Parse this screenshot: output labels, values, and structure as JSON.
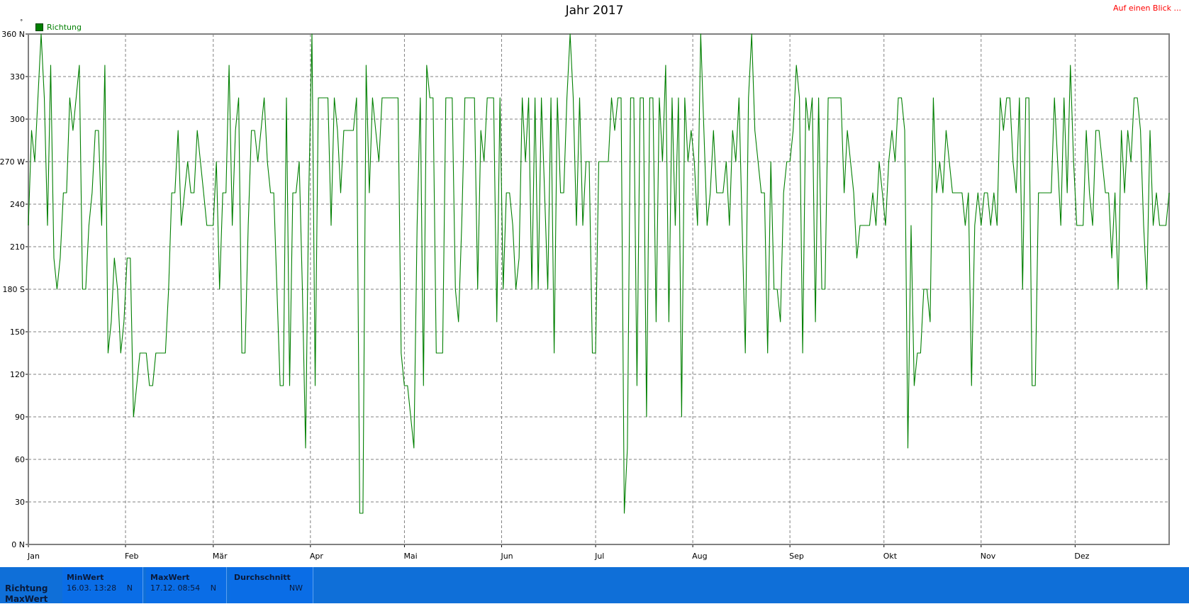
{
  "title": "Jahr 2017",
  "top_link": "Auf einen Blick ...",
  "corner_marker": "˚",
  "legend": {
    "label": "Richtung",
    "color": "#007f00"
  },
  "chart_data": {
    "type": "line",
    "title": "Jahr 2017",
    "x_unit": "day of year 2017",
    "x_range": [
      1,
      365
    ],
    "ylim": [
      0,
      360
    ],
    "y_ticks": [
      0,
      30,
      60,
      90,
      120,
      150,
      180,
      210,
      240,
      270,
      300,
      330,
      360
    ],
    "y_tick_labels": [
      "0 N",
      "30",
      "60",
      "90",
      "120",
      "150",
      "180 S",
      "210",
      "240",
      "270 W",
      "300",
      "330",
      "360 N"
    ],
    "x_month_labels": [
      "Jan",
      "Feb",
      "Mär",
      "Apr",
      "Mai",
      "Jun",
      "Jul",
      "Aug",
      "Sep",
      "Okt",
      "Nov",
      "Dez"
    ],
    "x_month_start_days": [
      1,
      32,
      60,
      91,
      121,
      152,
      182,
      213,
      244,
      274,
      305,
      335
    ],
    "grid": true,
    "legend_position": "top-left",
    "series": [
      {
        "name": "Richtung",
        "color": "#007f00",
        "values": [
          225,
          292,
          270,
          315,
          360,
          315,
          225,
          338,
          202,
          180,
          202,
          248,
          248,
          315,
          292,
          315,
          338,
          180,
          180,
          225,
          248,
          292,
          292,
          225,
          338,
          135,
          157,
          202,
          180,
          135,
          157,
          202,
          202,
          90,
          112,
          135,
          135,
          135,
          112,
          112,
          135,
          135,
          135,
          135,
          180,
          248,
          248,
          292,
          225,
          248,
          270,
          248,
          248,
          292,
          270,
          248,
          225,
          225,
          225,
          270,
          180,
          248,
          248,
          338,
          225,
          292,
          315,
          135,
          135,
          225,
          292,
          292,
          270,
          292,
          315,
          270,
          248,
          248,
          180,
          112,
          112,
          315,
          112,
          248,
          248,
          270,
          180,
          68,
          248,
          360,
          112,
          315,
          315,
          315,
          315,
          225,
          315,
          292,
          248,
          292,
          292,
          292,
          292,
          315,
          22,
          22,
          338,
          248,
          315,
          292,
          270,
          315,
          315,
          315,
          315,
          315,
          315,
          135,
          112,
          112,
          90,
          68,
          225,
          315,
          112,
          338,
          315,
          315,
          135,
          135,
          135,
          315,
          315,
          315,
          180,
          157,
          225,
          315,
          315,
          315,
          315,
          180,
          292,
          270,
          315,
          315,
          315,
          157,
          315,
          180,
          248,
          248,
          225,
          180,
          202,
          315,
          270,
          315,
          180,
          315,
          180,
          315,
          248,
          180,
          315,
          135,
          315,
          248,
          248,
          315,
          360,
          315,
          225,
          315,
          225,
          270,
          270,
          135,
          135,
          270,
          270,
          270,
          270,
          315,
          292,
          315,
          315,
          22,
          68,
          315,
          315,
          112,
          315,
          315,
          90,
          315,
          315,
          157,
          315,
          270,
          338,
          157,
          315,
          225,
          315,
          90,
          315,
          270,
          292,
          270,
          225,
          360,
          292,
          225,
          248,
          292,
          248,
          248,
          248,
          270,
          225,
          292,
          270,
          315,
          225,
          135,
          315,
          360,
          292,
          270,
          248,
          248,
          135,
          270,
          180,
          180,
          157,
          248,
          270,
          270,
          292,
          338,
          315,
          135,
          315,
          292,
          315,
          157,
          315,
          180,
          180,
          315,
          315,
          315,
          315,
          315,
          248,
          292,
          270,
          248,
          202,
          225,
          225,
          225,
          225,
          248,
          225,
          270,
          248,
          225,
          270,
          292,
          270,
          315,
          315,
          292,
          68,
          225,
          112,
          135,
          135,
          180,
          180,
          157,
          315,
          248,
          270,
          248,
          292,
          270,
          248,
          248,
          248,
          248,
          225,
          248,
          112,
          225,
          248,
          225,
          248,
          248,
          225,
          248,
          225,
          315,
          292,
          315,
          315,
          270,
          248,
          315,
          180,
          315,
          315,
          112,
          112,
          248,
          248,
          248,
          248,
          248,
          315,
          270,
          225,
          315,
          248,
          338,
          270,
          225,
          225,
          225,
          292,
          248,
          225,
          292,
          292,
          270,
          248,
          248,
          202,
          248,
          180,
          292,
          248,
          292,
          270,
          315,
          315,
          292,
          225,
          180,
          292,
          225,
          248,
          225,
          225,
          225,
          248
        ]
      }
    ]
  },
  "stats": {
    "row_labels": [
      "Richtung",
      "MaxWert"
    ],
    "min": {
      "header": "MinWert",
      "value": "16.03.  13:28",
      "direction": "N"
    },
    "max": {
      "header": "MaxWert",
      "value": "17.12.  08:54",
      "direction": "N"
    },
    "avg": {
      "header": "Durchschnitt",
      "value": "",
      "direction": "NW"
    }
  }
}
